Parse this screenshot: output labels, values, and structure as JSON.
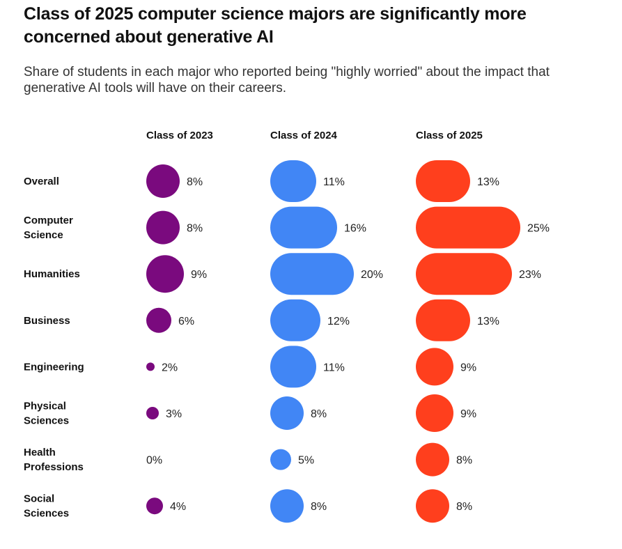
{
  "header": {
    "title": "Class of 2025 computer science majors are significantly more concerned about generative AI",
    "subtitle": "Share of students in each major who reported being \"highly worried\" about  the impact that generative AI tools will have on their careers."
  },
  "chart_data": {
    "type": "bar",
    "orientation": "horizontal",
    "title": "Class of 2025 computer science majors are significantly more concerned about generative AI",
    "subtitle": "Share of students in each major who reported being \"highly worried\" about  the impact that generative AI tools will have on their careers.",
    "unit": "%",
    "categories": [
      [
        "Overall"
      ],
      [
        "Computer",
        "Science"
      ],
      [
        "Humanities"
      ],
      [
        "Business"
      ],
      [
        "Engineering"
      ],
      [
        "Physical",
        "Sciences"
      ],
      [
        "Health",
        "Professions"
      ],
      [
        "Social",
        "Sciences"
      ]
    ],
    "series": [
      {
        "name": "Class of 2023",
        "color": "#7a0a7e",
        "values": [
          8,
          8,
          9,
          6,
          2,
          3,
          0,
          4
        ]
      },
      {
        "name": "Class of 2024",
        "color": "#4186f5",
        "values": [
          11,
          16,
          20,
          12,
          11,
          8,
          5,
          8
        ]
      },
      {
        "name": "Class of 2025",
        "color": "#ff3f1d",
        "values": [
          13,
          25,
          23,
          13,
          9,
          9,
          8,
          8
        ]
      }
    ]
  }
}
